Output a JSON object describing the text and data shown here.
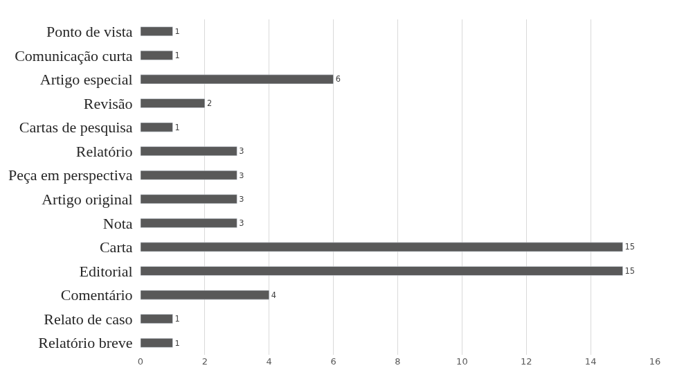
{
  "chart_data": {
    "type": "bar",
    "orientation": "horizontal",
    "categories": [
      "Ponto de vista",
      "Comunicação curta",
      "Artigo especial",
      "Revisão",
      "Cartas de pesquisa",
      "Relatório",
      "Peça em perspectiva",
      "Artigo original",
      "Nota",
      "Carta",
      "Editorial",
      "Comentário",
      "Relato de caso",
      "Relatório breve"
    ],
    "values": [
      1,
      1,
      6,
      2,
      1,
      3,
      3,
      3,
      3,
      15,
      15,
      4,
      1,
      1
    ],
    "color": "#595959",
    "xlim": [
      0,
      16
    ],
    "xticks": [
      0,
      2,
      4,
      6,
      8,
      10,
      12,
      14,
      16
    ],
    "grid": "x",
    "data_labels": true
  }
}
